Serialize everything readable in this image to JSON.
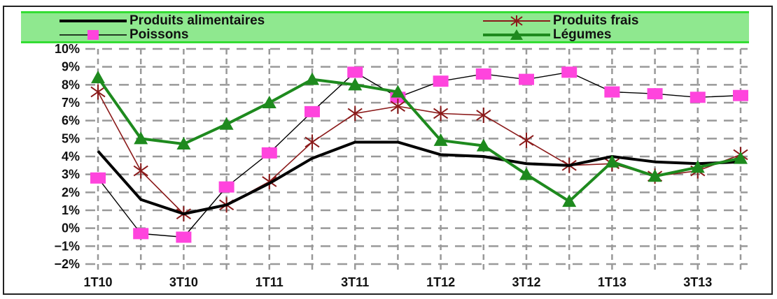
{
  "chart_data": {
    "type": "line",
    "categories": [
      "1T10",
      "2T10",
      "3T10",
      "4T10",
      "1T11",
      "2T11",
      "3T11",
      "4T11",
      "1T12",
      "2T12",
      "3T12",
      "4T12",
      "1T13",
      "2T13",
      "3T13",
      "4T13"
    ],
    "x_tick_labels": [
      "1T10",
      "3T10",
      "1T11",
      "3T11",
      "1T12",
      "3T12",
      "1T13",
      "3T13"
    ],
    "y_tick_labels": [
      "10%",
      "9%",
      "8%",
      "7%",
      "6%",
      "5%",
      "4%",
      "3%",
      "2%",
      "1%",
      "0%",
      "−1%",
      "−2%"
    ],
    "ylim": [
      -2,
      10
    ],
    "grid": true,
    "legend_position": "top",
    "series": [
      {
        "name": "Produits alimentaires",
        "color": "#000000",
        "marker": "none",
        "line_width": 4,
        "values": [
          4.3,
          1.6,
          0.8,
          1.3,
          2.5,
          3.9,
          4.8,
          4.8,
          4.1,
          4.0,
          3.6,
          3.5,
          4.0,
          3.7,
          3.6,
          3.7
        ]
      },
      {
        "name": "Produits frais",
        "color": "#8b1a1a",
        "marker": "star",
        "line_width": 1.6,
        "values": [
          7.6,
          3.2,
          0.8,
          1.3,
          2.6,
          4.8,
          6.4,
          6.8,
          6.4,
          6.3,
          4.9,
          3.5,
          3.6,
          2.9,
          3.2,
          4.1
        ]
      },
      {
        "name": "Poissons",
        "color": "#000000",
        "marker_color": "#ff44dd",
        "marker": "square",
        "line_width": 1.4,
        "values": [
          2.8,
          -0.3,
          -0.5,
          2.3,
          4.2,
          6.5,
          8.7,
          7.3,
          8.2,
          8.6,
          8.3,
          8.7,
          7.6,
          7.5,
          7.3,
          7.4
        ]
      },
      {
        "name": "Légumes",
        "color": "#1e8a1e",
        "marker": "triangle",
        "line_width": 4,
        "values": [
          8.4,
          5.0,
          4.7,
          5.8,
          7.0,
          8.3,
          8.0,
          7.6,
          4.9,
          4.6,
          3.0,
          1.5,
          3.7,
          2.9,
          3.4,
          3.9
        ]
      }
    ]
  }
}
